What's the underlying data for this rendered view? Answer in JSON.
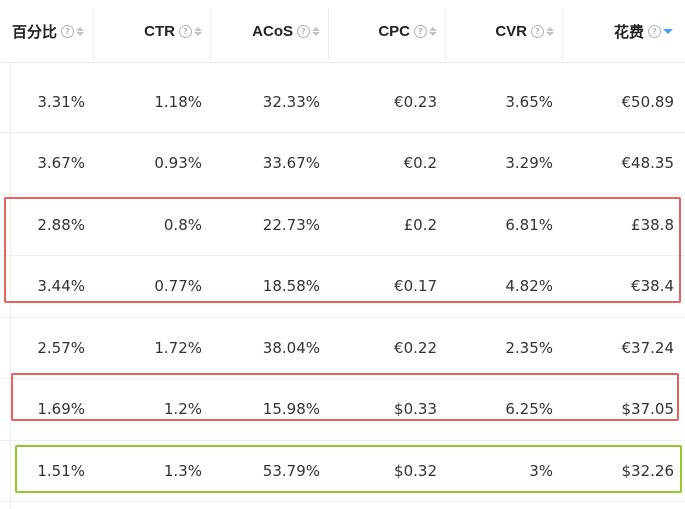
{
  "columns": [
    {
      "label": "百分比",
      "sort": "none"
    },
    {
      "label": "CTR",
      "sort": "none"
    },
    {
      "label": "ACoS",
      "sort": "none"
    },
    {
      "label": "CPC",
      "sort": "none"
    },
    {
      "label": "CVR",
      "sort": "none"
    },
    {
      "label": "花费",
      "sort": "desc"
    }
  ],
  "help_glyph": "?",
  "rows": [
    [
      "3.31%",
      "1.18%",
      "32.33%",
      "€0.23",
      "3.65%",
      "€50.89"
    ],
    [
      "3.67%",
      "0.93%",
      "33.67%",
      "€0.2",
      "3.29%",
      "€48.35"
    ],
    [
      "2.88%",
      "0.8%",
      "22.73%",
      "£0.2",
      "6.81%",
      "£38.8"
    ],
    [
      "3.44%",
      "0.77%",
      "18.58%",
      "€0.17",
      "4.82%",
      "€38.4"
    ],
    [
      "2.57%",
      "1.72%",
      "38.04%",
      "€0.22",
      "2.35%",
      "€37.24"
    ],
    [
      "1.69%",
      "1.2%",
      "15.98%",
      "$0.33",
      "6.25%",
      "$37.05"
    ],
    [
      "1.51%",
      "1.3%",
      "53.79%",
      "$0.32",
      "3%",
      "$32.26"
    ]
  ],
  "highlight_colors": {
    "red": "#e8605f",
    "green": "#92c92c",
    "sort_active": "#409eff"
  }
}
